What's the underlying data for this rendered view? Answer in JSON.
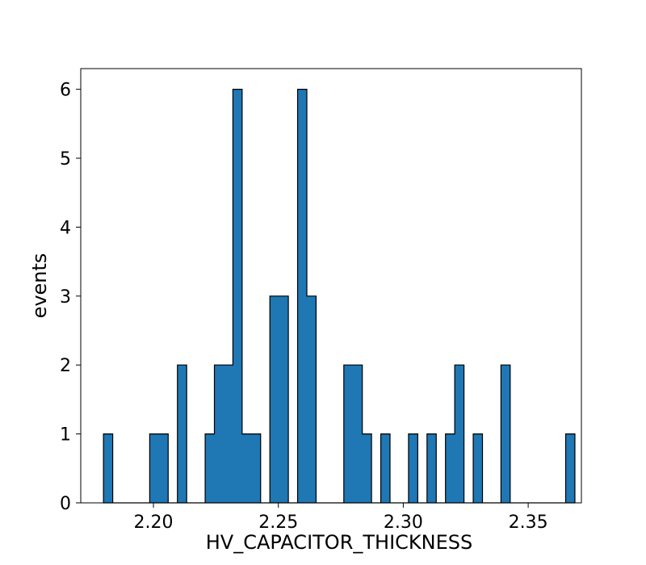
{
  "chart_data": {
    "type": "histogram",
    "xlabel": "HV_CAPACITOR_THICKNESS",
    "ylabel": "events",
    "xlim": [
      2.1709,
      2.3713
    ],
    "ylim": [
      0,
      6.3
    ],
    "grid": false,
    "legend": "none",
    "colors": {
      "fill": "#1f77b4",
      "edge": "#000000"
    },
    "bin_start": 2.18,
    "bin_width": 0.0037,
    "counts": [
      1,
      0,
      0,
      0,
      0,
      1,
      1,
      0,
      2,
      0,
      0,
      1,
      2,
      2,
      6,
      1,
      1,
      0,
      3,
      3,
      0,
      6,
      3,
      0,
      0,
      0,
      2,
      2,
      1,
      0,
      1,
      0,
      0,
      1,
      0,
      1,
      0,
      1,
      2,
      0,
      1,
      0,
      0,
      2,
      0,
      0,
      0,
      0,
      0,
      0,
      1
    ],
    "x_ticks": [
      2.2,
      2.25,
      2.3,
      2.35
    ],
    "x_tick_labels": [
      "2.20",
      "2.25",
      "2.30",
      "2.35"
    ],
    "y_ticks": [
      0,
      1,
      2,
      3,
      4,
      5,
      6
    ],
    "y_tick_labels": [
      "0",
      "1",
      "2",
      "3",
      "4",
      "5",
      "6"
    ]
  }
}
